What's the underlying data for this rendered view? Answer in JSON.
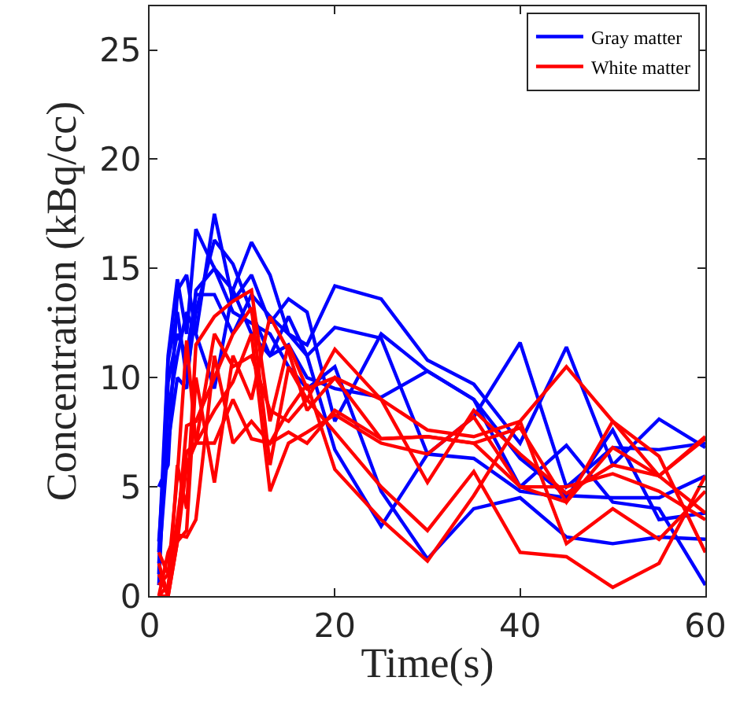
{
  "chart_data": {
    "type": "line",
    "xlabel": "Time(s)",
    "ylabel": "Concentration (kBq/cc)",
    "x": [
      1,
      2,
      3,
      4,
      5,
      7,
      9,
      11,
      13,
      15,
      17,
      20,
      25,
      30,
      35,
      40,
      45,
      50,
      55,
      60
    ],
    "series": [
      {
        "name": "Gray matter",
        "color": "#0000ff",
        "values": [
          2,
          11,
          14.5,
          12,
          16.8,
          15,
          14,
          16.2,
          14.7,
          12,
          11.5,
          14.2,
          13.6,
          10.8,
          9.7,
          7,
          11.4,
          6,
          8.1,
          6.8
        ]
      },
      {
        "color": "#0000ff",
        "values": [
          5,
          6,
          14,
          14.7,
          12,
          17.5,
          13.5,
          14.7,
          12.5,
          13.6,
          13,
          8,
          12,
          10.3,
          9,
          5,
          6.9,
          4.3,
          4,
          0.5
        ]
      },
      {
        "color": "#0000ff",
        "values": [
          1,
          10.8,
          13,
          10,
          13,
          16.3,
          15.2,
          13,
          11,
          12.8,
          11,
          12.3,
          11.8,
          6.5,
          8.2,
          11.6,
          5,
          6.8,
          6.7,
          7
        ]
      },
      {
        "color": "#0000ff",
        "values": [
          0.5,
          9.8,
          12,
          11,
          13.8,
          13.8,
          12,
          13.8,
          12.8,
          12,
          11,
          6.7,
          3.2,
          6.5,
          6.3,
          4.8,
          4.5,
          7.6,
          3.5,
          3.8
        ]
      },
      {
        "color": "#0000ff",
        "values": [
          1.5,
          7,
          10,
          9.5,
          14,
          15,
          13,
          12.5,
          12,
          10.5,
          9.5,
          10.5,
          4.8,
          1.7,
          4,
          4.5,
          2.7,
          2.4,
          2.7,
          2.6
        ]
      },
      {
        "color": "#0000ff",
        "values": [
          2.5,
          8.5,
          11,
          13,
          12,
          9.5,
          14,
          12,
          11,
          11.5,
          10,
          9.5,
          9.1,
          10.3,
          9,
          6.3,
          4.6,
          4.5,
          4.5,
          5.5
        ]
      },
      {
        "name": "White matter",
        "color": "#ff0000",
        "values": [
          1.5,
          0,
          6,
          4,
          11.5,
          12.8,
          13.5,
          14,
          8,
          11.5,
          9.5,
          10,
          9,
          7.6,
          7.3,
          8,
          10.5,
          8,
          5.5,
          7.3
        ]
      },
      {
        "color": "#ff0000",
        "values": [
          0,
          2,
          3,
          7.8,
          8,
          10,
          12,
          13.2,
          6,
          10.5,
          9,
          11.3,
          9,
          5.2,
          8.5,
          6.5,
          4.7,
          6,
          5.5,
          7.2
        ]
      },
      {
        "color": "#ff0000",
        "values": [
          0.5,
          1,
          5.5,
          11.7,
          7,
          8.5,
          9.8,
          12,
          4.8,
          7,
          7.5,
          8.3,
          7,
          6.5,
          8.2,
          5,
          5,
          5.6,
          4.8,
          3.5
        ]
      },
      {
        "color": "#ff0000",
        "values": [
          0,
          0,
          2.5,
          3,
          10,
          5.2,
          11,
          9,
          12.8,
          11.2,
          8.5,
          10,
          7.2,
          7.3,
          7,
          7.7,
          4.3,
          8,
          6.4,
          2
        ]
      },
      {
        "color": "#ff0000",
        "values": [
          2,
          1,
          2.8,
          2.7,
          3.5,
          11,
          7,
          8,
          7,
          8.5,
          9.7,
          5.8,
          3.5,
          1.6,
          4.6,
          8,
          2.4,
          4,
          2.6,
          4.8
        ]
      },
      {
        "color": "#ff0000",
        "values": [
          1,
          0,
          2.5,
          6,
          7,
          12,
          10.5,
          11,
          8.5,
          8,
          9,
          7.5,
          5,
          3,
          5.7,
          2,
          1.8,
          0.4,
          1.5,
          5.5
        ]
      },
      {
        "color": "#ff0000",
        "values": [
          0,
          0.5,
          3.5,
          6.6,
          7,
          7,
          9,
          7.2,
          7,
          7.5,
          7,
          8.5,
          7.2,
          7.3,
          7,
          5,
          4.3,
          6.8,
          5.5,
          3.8
        ]
      }
    ],
    "xlim": [
      0,
      60
    ],
    "ylim": [
      0,
      27
    ],
    "xticks": [
      0,
      20,
      40,
      60
    ],
    "yticks": [
      0,
      5,
      10,
      15,
      20,
      25
    ],
    "legend": "top right",
    "marker": "none",
    "line_style": "solid"
  }
}
